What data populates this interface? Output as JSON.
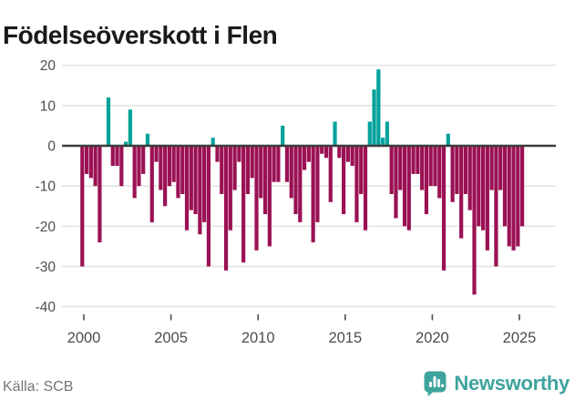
{
  "title": "Födelseöverskott i Flen",
  "footer": {
    "source": "Källa: SCB",
    "brand": "Newsworthy"
  },
  "colors": {
    "positive_bar": "#00a29b",
    "negative_bar": "#9b1154",
    "zero_line": "#3d3d3d",
    "gridline": "#e4e4e4",
    "tick_text": "#4d4d4d",
    "title_text": "#1a1a1a",
    "source_text": "#757575",
    "brand_teal": "#3fa39d"
  },
  "chart_data": {
    "type": "bar",
    "title": "Födelseöverskott i Flen",
    "frequency": "quarterly",
    "start": "2000 Q1",
    "end": "2025 Q2",
    "values": [
      -30,
      -7,
      -8,
      -10,
      -24,
      0,
      12,
      -5,
      -5,
      -10,
      1,
      9,
      -13,
      -10,
      -7,
      3,
      -19,
      -4,
      -11,
      -15,
      -10,
      -9,
      -13,
      -12,
      -21,
      -16,
      -17,
      -22,
      -19,
      -30,
      2,
      -4,
      -12,
      -31,
      -21,
      -11,
      -4,
      -29,
      -12,
      -8,
      -26,
      -13,
      -17,
      -25,
      -9,
      -9,
      5,
      -9,
      -13,
      -17,
      -19,
      -6,
      -4,
      -24,
      -19,
      -2,
      -3,
      -14,
      6,
      -3,
      -17,
      -4,
      -5,
      -19,
      -12,
      -21,
      6,
      14,
      19,
      2,
      6,
      -12,
      -18,
      -11,
      -20,
      -21,
      -7,
      -7,
      -11,
      -17,
      -10,
      -10,
      -13,
      -31,
      3,
      -14,
      -12,
      -23,
      -12,
      -16,
      -37,
      -20,
      -21,
      -26,
      -11,
      -30,
      -11,
      -20,
      -25,
      -26,
      -25,
      -20
    ],
    "x_tick_labels": [
      "2000",
      "2005",
      "2010",
      "2015",
      "2020",
      "2025"
    ],
    "y_ticks": [
      20,
      10,
      0,
      -10,
      -20,
      -30,
      -40
    ],
    "ylim": [
      -40,
      20
    ],
    "grid": "horizontal",
    "legend": "none",
    "positive_color": "#00a29b",
    "negative_color": "#9b1154"
  }
}
